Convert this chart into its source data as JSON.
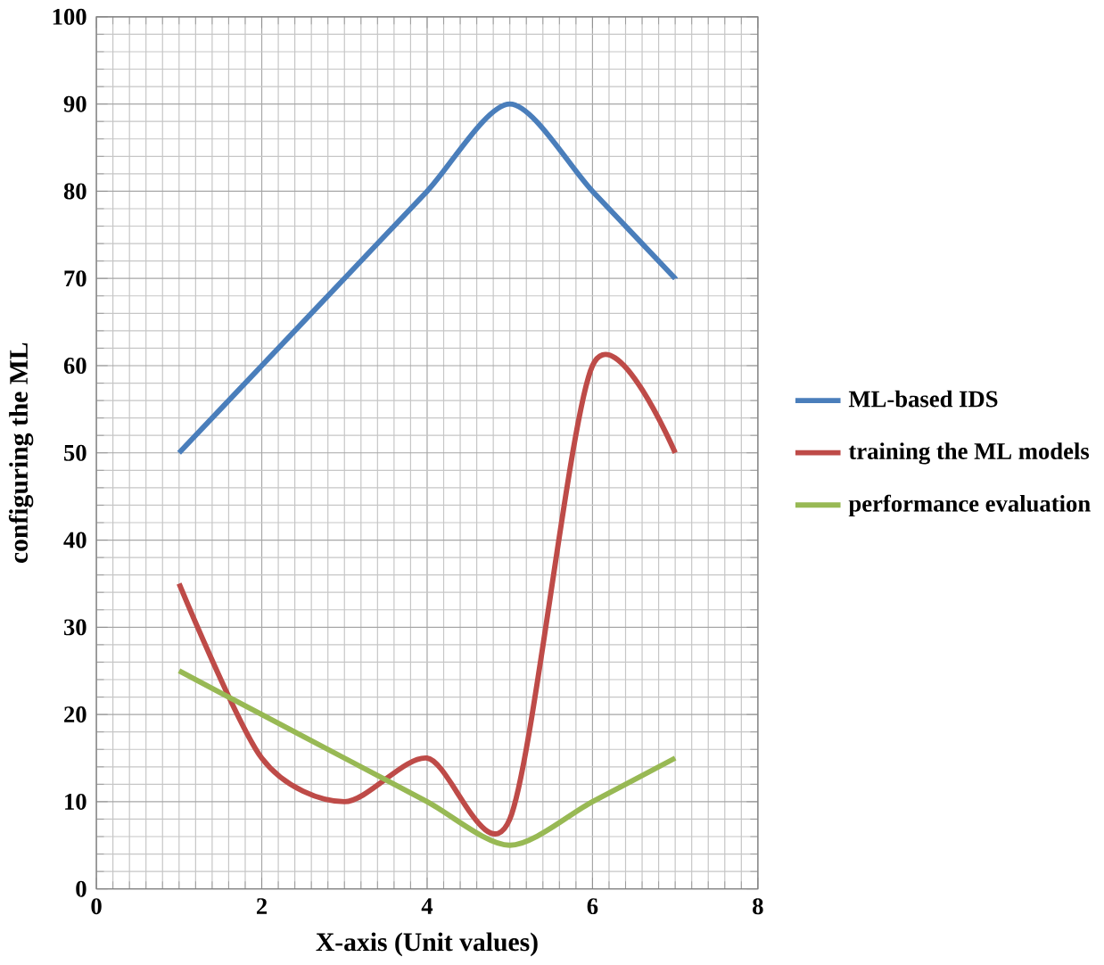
{
  "chart_data": {
    "type": "line",
    "xlabel": "X-axis (Unit values)",
    "ylabel": "configuring  the  ML",
    "x": [
      1,
      2,
      3,
      4,
      5,
      6,
      7
    ],
    "series": [
      {
        "name": "ML-based IDS",
        "color": "#4a7ebb",
        "values": [
          50,
          60,
          70,
          80,
          90,
          80,
          70
        ]
      },
      {
        "name": "training the ML models",
        "color": "#be4b48",
        "values": [
          35,
          15,
          10,
          15,
          8,
          60,
          50
        ]
      },
      {
        "name": "performance evaluation",
        "color": "#98b954",
        "values": [
          25,
          20,
          15,
          10,
          5,
          10,
          15
        ]
      }
    ],
    "xlim": [
      0,
      8
    ],
    "ylim": [
      0,
      100
    ],
    "xticks": [
      0,
      2,
      4,
      6,
      8
    ],
    "yticks": [
      0,
      10,
      20,
      30,
      40,
      50,
      60,
      70,
      80,
      90,
      100
    ],
    "grid": true,
    "legend": "right",
    "marker": "none",
    "line_style": "solid"
  }
}
